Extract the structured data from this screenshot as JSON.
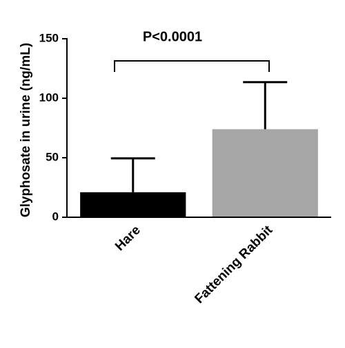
{
  "chart_data": {
    "type": "bar",
    "annotation": "P<0.0001",
    "y_label": "Glyphosate in urine (ng/mL)",
    "categories": [
      "Hare",
      "Fattening Rabbit"
    ],
    "values": [
      21,
      74
    ],
    "errors": [
      28.5,
      39.5
    ],
    "colors": [
      "#000000",
      "#a6a6a6"
    ],
    "ylim": [
      0,
      150
    ],
    "yticks": [
      0,
      50,
      100,
      150
    ],
    "grid": false
  }
}
